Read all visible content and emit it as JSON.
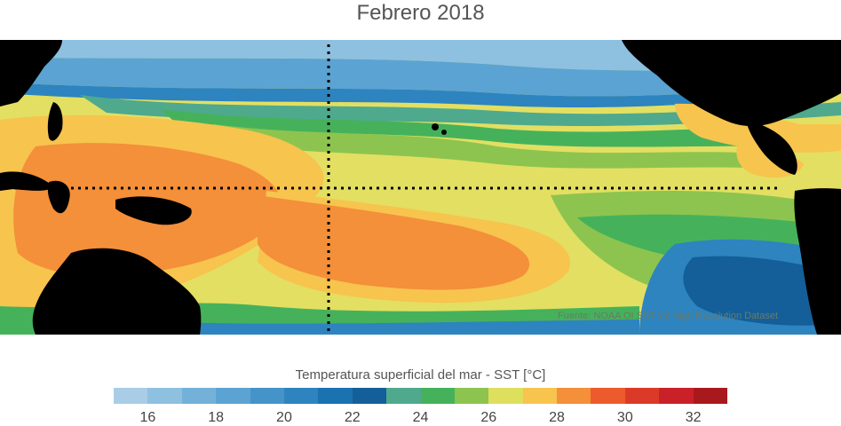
{
  "title": "Febrero 2018",
  "source": "Fuente: NOAA OI SST V2 High Resolution Dataset",
  "colorbar": {
    "title": "Temperatura superficial del mar - SST  [°C]",
    "colors": [
      "#a9cde6",
      "#8ec0e0",
      "#74b1d9",
      "#5ba3d2",
      "#4494c9",
      "#2d84bf",
      "#1a72b0",
      "#145f99",
      "#4fa98d",
      "#45b25b",
      "#8dc44f",
      "#dfdf5e",
      "#f7c44e",
      "#f48f3a",
      "#ec5b2b",
      "#dc3a28",
      "#ca2129",
      "#a8191d"
    ],
    "ticks": [
      "16",
      "18",
      "20",
      "22",
      "24",
      "26",
      "28",
      "30",
      "32"
    ]
  },
  "map": {
    "ocean_color": "#e3df62",
    "land_color": "#000000"
  }
}
